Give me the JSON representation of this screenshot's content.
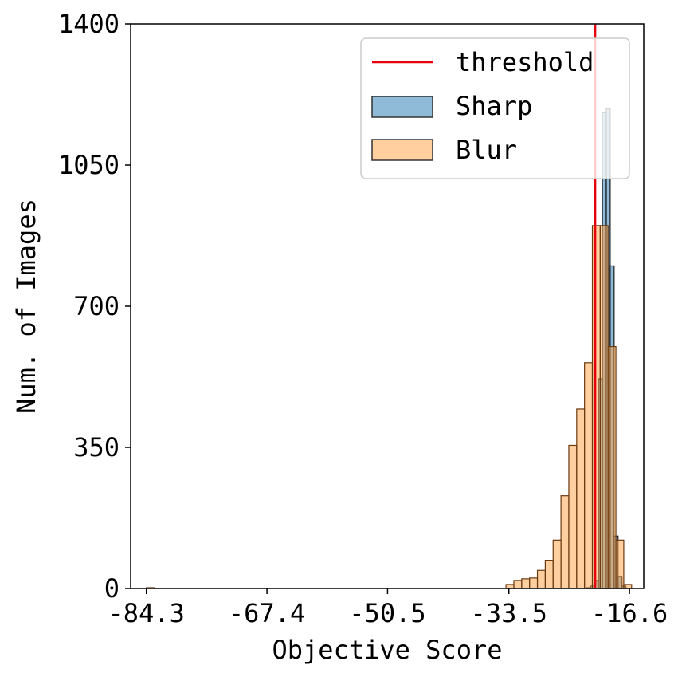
{
  "chart_data": {
    "type": "bar",
    "title": "",
    "xlabel": "Objective Score",
    "ylabel": "Num. of Images",
    "xlim": [
      -86.5,
      -14.6
    ],
    "ylim": [
      0,
      1400
    ],
    "xticks": [
      "-84.3",
      "-67.4",
      "-50.5",
      "-33.5",
      "-16.6"
    ],
    "yticks": [
      "0",
      "350",
      "700",
      "1050",
      "1400"
    ],
    "grid": false,
    "legend_position": "top-right",
    "threshold": {
      "name": "threshold",
      "x": -21.4,
      "color": "#e8000b"
    },
    "series": [
      {
        "name": "Sharp",
        "color": "#1f77b4",
        "edge": "#1a1a1a",
        "bin_width": 0.55,
        "bins": [
          [
            -22.6,
            2
          ],
          [
            -22.05,
            6
          ],
          [
            -21.5,
            20
          ],
          [
            -20.95,
            520
          ],
          [
            -20.4,
            1180
          ],
          [
            -19.85,
            1190
          ],
          [
            -19.3,
            800
          ],
          [
            -18.75,
            130
          ],
          [
            -18.2,
            30
          ],
          [
            -17.65,
            6
          ]
        ]
      },
      {
        "name": "Blur",
        "color": "#ff9f40",
        "edge": "#6b3a10",
        "bin_width": 1.1,
        "bins": [
          [
            -84.3,
            2
          ],
          [
            -33.9,
            10
          ],
          [
            -32.8,
            20
          ],
          [
            -31.7,
            24
          ],
          [
            -30.6,
            26
          ],
          [
            -29.5,
            45
          ],
          [
            -28.4,
            70
          ],
          [
            -27.3,
            120
          ],
          [
            -26.2,
            230
          ],
          [
            -25.1,
            355
          ],
          [
            -24.0,
            445
          ],
          [
            -22.9,
            560
          ],
          [
            -21.8,
            900
          ],
          [
            -20.7,
            900
          ],
          [
            -19.6,
            600
          ],
          [
            -18.5,
            120
          ],
          [
            -17.4,
            10
          ]
        ]
      }
    ]
  }
}
